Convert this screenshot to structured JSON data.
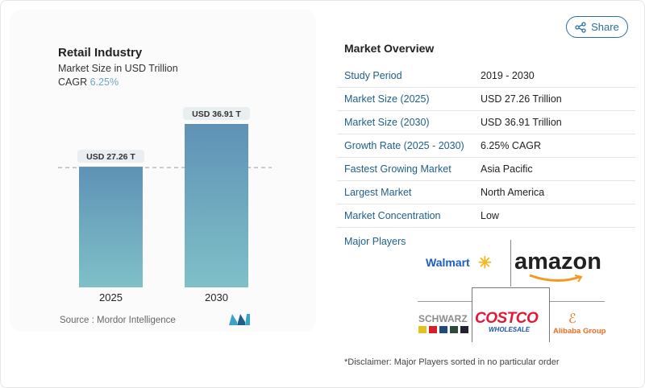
{
  "chart_data": {
    "type": "bar",
    "title": "Retail Industry",
    "subtitle": "Market Size in USD Trillion",
    "cagr_label": "CAGR",
    "cagr_value": "6.25%",
    "categories": [
      "2025",
      "2030"
    ],
    "values": [
      27.26,
      36.91
    ],
    "data_labels": [
      "USD 27.26 T",
      "USD 36.91 T"
    ],
    "ylim": [
      0,
      36.91
    ],
    "grid": false,
    "reference_line": "dashed at 2025 value",
    "source": "Source :  Mordor Intelligence",
    "colors": {
      "bar_top": "#5f92b6",
      "bar_bottom": "#7fc0c8"
    }
  },
  "share": {
    "label": "Share",
    "icon": "share-icon"
  },
  "overview": {
    "title": "Market Overview",
    "rows": [
      {
        "label": "Study Period",
        "value": "2019 - 2030"
      },
      {
        "label": "Market Size (2025)",
        "value": "USD 27.26 Trillion"
      },
      {
        "label": "Market Size (2030)",
        "value": "USD 36.91 Trillion"
      },
      {
        "label": "Growth Rate (2025 - 2030)",
        "value": "6.25% CAGR"
      },
      {
        "label": "Fastest Growing Market",
        "value": "Asia Pacific"
      },
      {
        "label": "Largest Market",
        "value": "North America"
      },
      {
        "label": "Market Concentration",
        "value": "Low"
      }
    ],
    "major_players_label": "Major Players",
    "players": [
      "Walmart",
      "amazon",
      "SCHWARZ",
      "COSTCO",
      "WHOLESALE",
      "Alibaba Group"
    ],
    "disclaimer": "*Disclaimer: Major Players sorted in no particular order"
  }
}
